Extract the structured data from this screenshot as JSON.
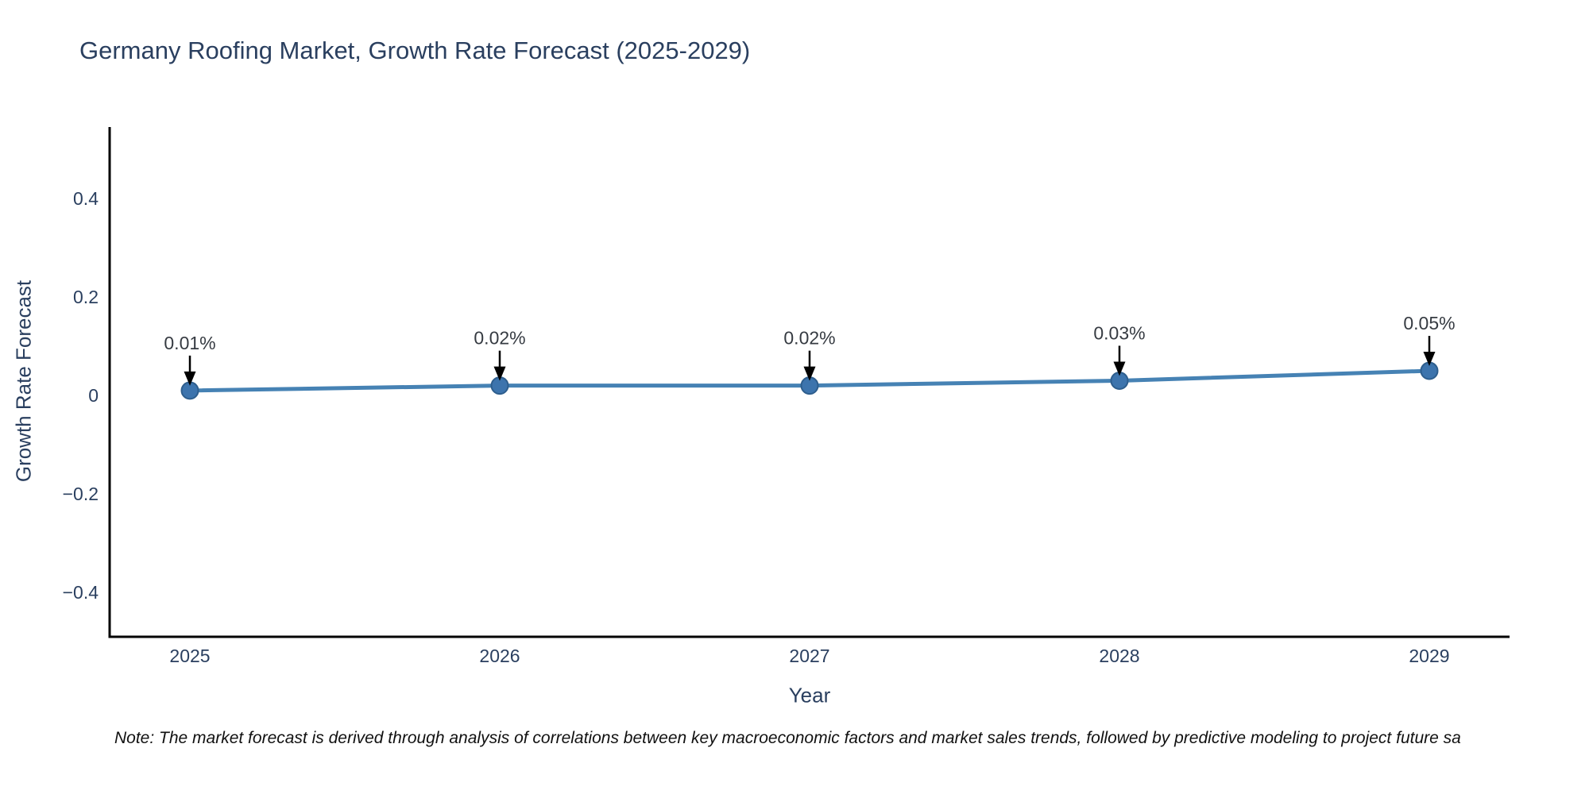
{
  "title": "Germany Roofing Market, Growth Rate Forecast (2025-2029)",
  "note": "Note: The market forecast is derived through analysis of correlations between key macroeconomic factors and market sales trends, followed by predictive modeling to project future sa",
  "colors": {
    "background": "#ffffff",
    "title_text": "#2a3f5f",
    "axis_text": "#2a3f5f",
    "annotation_text": "#363b42",
    "axis_line": "#000000",
    "line": "#4682b4",
    "marker_fill": "#3d74ad",
    "marker_edge": "#2e5e8d",
    "arrow": "#000000",
    "note_text": "#111111"
  },
  "chart_data": {
    "type": "line",
    "title": "Germany Roofing Market, Growth Rate Forecast (2025-2029)",
    "xlabel": "Year",
    "ylabel": "Growth Rate Forecast",
    "x": [
      2025,
      2026,
      2027,
      2028,
      2029
    ],
    "y": [
      0.01,
      0.02,
      0.02,
      0.03,
      0.05
    ],
    "point_labels": [
      "0.01%",
      "0.02%",
      "0.02%",
      "0.03%",
      "0.05%"
    ],
    "xticks": [
      2025,
      2026,
      2027,
      2028,
      2029
    ],
    "yticks": [
      0.4,
      0.2,
      0,
      -0.2,
      -0.4
    ],
    "xlim": [
      2024.741,
      2029.259
    ],
    "ylim": [
      -0.49,
      0.545
    ],
    "grid": false,
    "legend": false,
    "annotations_have_arrows": true
  }
}
